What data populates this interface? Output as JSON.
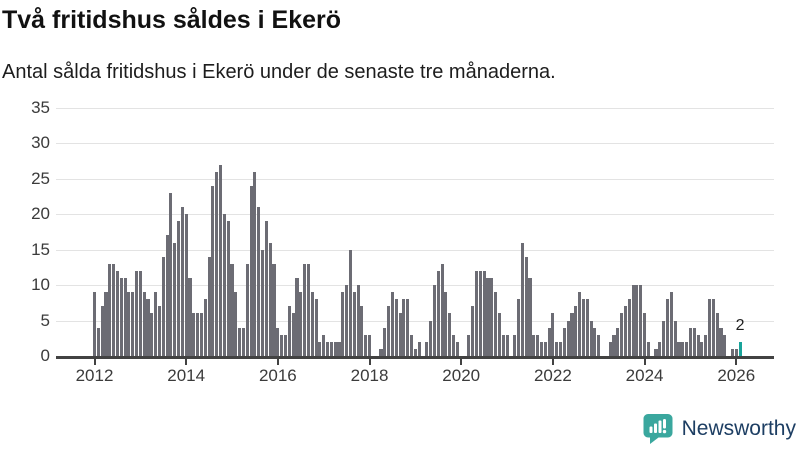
{
  "chart_data": {
    "type": "bar",
    "title": "Två fritidshus såldes i Ekerö",
    "subtitle": "Antal sålda fritidshus i Ekerö under de senaste tre månaderna.",
    "x_start": "2012-01",
    "frequency": "monthly",
    "values": [
      9,
      4,
      7,
      9,
      13,
      13,
      12,
      11,
      11,
      9,
      9,
      12,
      12,
      9,
      8,
      6,
      9,
      7,
      14,
      17,
      23,
      16,
      19,
      21,
      20,
      11,
      6,
      6,
      6,
      8,
      14,
      24,
      26,
      27,
      20,
      19,
      13,
      9,
      4,
      4,
      13,
      24,
      26,
      21,
      15,
      19,
      16,
      13,
      4,
      3,
      3,
      7,
      6,
      11,
      9,
      13,
      13,
      9,
      8,
      2,
      3,
      2,
      2,
      2,
      2,
      9,
      10,
      15,
      9,
      10,
      7,
      3,
      3,
      0,
      0,
      1,
      4,
      7,
      9,
      8,
      6,
      8,
      8,
      3,
      1,
      2,
      0,
      2,
      5,
      10,
      12,
      13,
      9,
      6,
      3,
      2,
      0,
      0,
      3,
      7,
      12,
      12,
      12,
      11,
      11,
      9,
      6,
      3,
      3,
      0,
      3,
      8,
      16,
      14,
      11,
      3,
      3,
      2,
      2,
      4,
      6,
      2,
      2,
      4,
      5,
      6,
      7,
      9,
      8,
      8,
      5,
      4,
      3,
      0,
      0,
      2,
      3,
      4,
      6,
      7,
      8,
      10,
      10,
      10,
      6,
      2,
      0,
      1,
      2,
      5,
      8,
      9,
      5,
      2,
      2,
      2,
      4,
      4,
      3,
      2,
      3,
      8,
      8,
      6,
      4,
      3,
      0,
      1,
      1,
      2
    ],
    "highlight": {
      "index": 169,
      "label": "2",
      "color": "#18a39a"
    },
    "bar_color": "#6c6c74",
    "x_tick_labels": [
      "2012",
      "2014",
      "2016",
      "2018",
      "2020",
      "2022",
      "2024",
      "2026"
    ],
    "y_ticks": [
      0,
      5,
      10,
      15,
      20,
      25,
      30,
      35
    ],
    "ylim": [
      0,
      35
    ],
    "grid": "horizontal",
    "legend": "none"
  },
  "footer": {
    "logo_text": "Newsworthy",
    "logo_color": "#3aa79e",
    "logo_text_color": "#1d3e63"
  }
}
